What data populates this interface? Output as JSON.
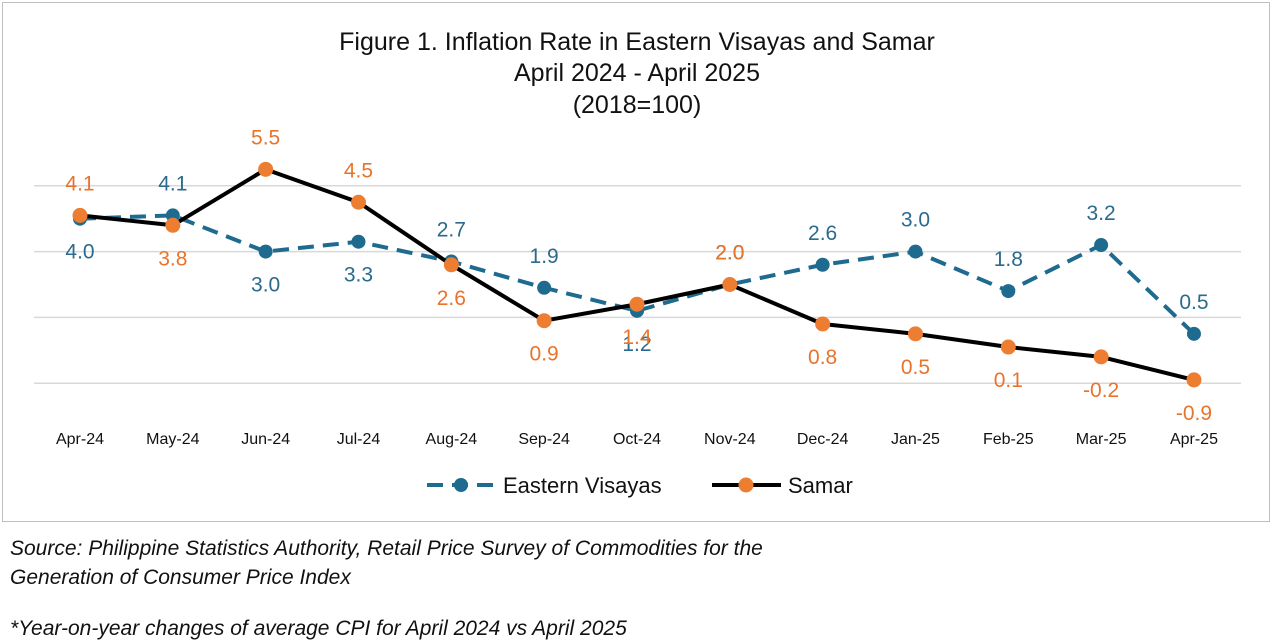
{
  "chart_data": {
    "type": "line",
    "title": "Figure 1. Inflation Rate in Eastern Visayas and Samar",
    "subtitle": "April 2024 - April 2025",
    "subtitle2": "(2018=100)",
    "categories": [
      "Apr-24",
      "May-24",
      "Jun-24",
      "Jul-24",
      "Aug-24",
      "Sep-24",
      "Oct-24",
      "Nov-24",
      "Dec-24",
      "Jan-25",
      "Feb-25",
      "Mar-25",
      "Apr-25"
    ],
    "series": [
      {
        "name": "Eastern Visayas",
        "color": "#1f6b8f",
        "style": "dashed",
        "values": [
          4.0,
          4.1,
          3.0,
          3.3,
          2.7,
          1.9,
          1.2,
          2.0,
          2.6,
          3.0,
          1.8,
          3.2,
          0.5
        ],
        "labels": [
          "4.0",
          "4.1",
          "3.0",
          "3.3",
          "2.7",
          "1.9",
          "1.2",
          "2.0",
          "2.6",
          "3.0",
          "1.8",
          "3.2",
          "0.5"
        ]
      },
      {
        "name": "Samar",
        "color": "#000000",
        "marker_color": "#ed7d31",
        "style": "solid",
        "values": [
          4.1,
          3.8,
          5.5,
          4.5,
          2.6,
          0.9,
          1.4,
          2.0,
          0.8,
          0.5,
          0.1,
          -0.2,
          -0.9
        ],
        "labels": [
          "4.1",
          "3.8",
          "5.5",
          "4.5",
          "2.6",
          "0.9",
          "1.4",
          "2.0",
          "0.8",
          "0.5",
          "0.1",
          "-0.2",
          "-0.9"
        ]
      }
    ],
    "ylim": [
      -2,
      6
    ],
    "gridlines": [
      -1,
      1,
      3,
      5
    ],
    "grid": true,
    "legend": "bottom",
    "label_colors": {
      "eastern_visayas": "#2b6a8c",
      "samar": "#e8742c"
    }
  },
  "notes": {
    "source_line1": "Source: Philippine Statistics Authority, Retail Price Survey of Commodities for the",
    "source_line2": "Generation of Consumer Price Index",
    "footnote": "*Year-on-year changes of average CPI for April 2024 vs April 2025"
  }
}
